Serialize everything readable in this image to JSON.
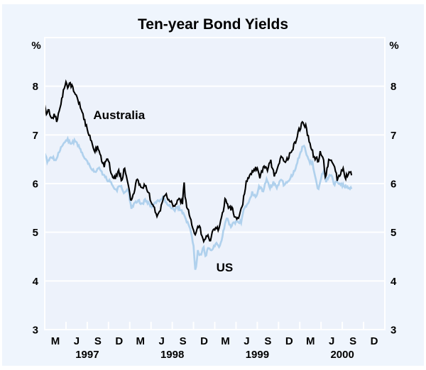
{
  "page": {
    "background": "#eff5fd",
    "plot_background": "#edf2fb",
    "grid_color": "#ffffff"
  },
  "chart_data": {
    "type": "line",
    "title": "Ten-year Bond Yields",
    "y_axis": {
      "unit_left": "%",
      "unit_right": "%",
      "min": 3,
      "max": 9,
      "tick_labels": [
        3,
        4,
        5,
        6,
        7,
        8
      ],
      "gridlines_at": [
        4,
        5,
        6,
        7,
        8
      ],
      "grid_on": true
    },
    "x_axis": {
      "month_labels": [
        "M",
        "J",
        "S",
        "D"
      ],
      "years": [
        "1997",
        "1998",
        "1999",
        "2000"
      ],
      "months_total": 48,
      "tick_every_months": 3
    },
    "series": [
      {
        "name": "US",
        "color": "#b0d1ed",
        "line_width": 2.7,
        "points": [
          [
            0,
            6.62
          ],
          [
            0.4,
            6.45
          ],
          [
            1.0,
            6.56
          ],
          [
            1.5,
            6.48
          ],
          [
            2.2,
            6.7
          ],
          [
            2.7,
            6.82
          ],
          [
            3.2,
            6.92
          ],
          [
            3.7,
            6.8
          ],
          [
            4.2,
            6.88
          ],
          [
            4.7,
            6.78
          ],
          [
            5.2,
            6.65
          ],
          [
            5.7,
            6.52
          ],
          [
            6.2,
            6.42
          ],
          [
            6.7,
            6.3
          ],
          [
            7.2,
            6.24
          ],
          [
            7.7,
            6.32
          ],
          [
            8.2,
            6.18
          ],
          [
            8.7,
            6.1
          ],
          [
            9.2,
            6.04
          ],
          [
            9.7,
            5.94
          ],
          [
            10.2,
            5.88
          ],
          [
            10.7,
            5.96
          ],
          [
            11.2,
            5.78
          ],
          [
            11.7,
            5.92
          ],
          [
            12.2,
            5.5
          ],
          [
            12.7,
            5.58
          ],
          [
            13.2,
            5.66
          ],
          [
            13.7,
            5.58
          ],
          [
            14.2,
            5.66
          ],
          [
            14.7,
            5.58
          ],
          [
            15.2,
            5.54
          ],
          [
            15.7,
            5.62
          ],
          [
            16.2,
            5.66
          ],
          [
            16.7,
            5.72
          ],
          [
            17.2,
            5.6
          ],
          [
            17.7,
            5.54
          ],
          [
            18.2,
            5.44
          ],
          [
            18.7,
            5.52
          ],
          [
            19.2,
            5.46
          ],
          [
            19.7,
            5.34
          ],
          [
            20.2,
            5.18
          ],
          [
            20.7,
            4.98
          ],
          [
            21.0,
            4.72
          ],
          [
            21.25,
            4.18
          ],
          [
            21.6,
            4.62
          ],
          [
            22.0,
            4.5
          ],
          [
            22.4,
            4.7
          ],
          [
            22.7,
            4.48
          ],
          [
            23.1,
            4.72
          ],
          [
            23.5,
            4.62
          ],
          [
            23.9,
            4.7
          ],
          [
            24.3,
            4.8
          ],
          [
            24.7,
            4.68
          ],
          [
            25.2,
            5.02
          ],
          [
            25.7,
            5.3
          ],
          [
            26.2,
            5.12
          ],
          [
            26.7,
            5.18
          ],
          [
            27.2,
            5.24
          ],
          [
            27.7,
            5.2
          ],
          [
            28.2,
            5.52
          ],
          [
            28.7,
            5.6
          ],
          [
            29.3,
            5.82
          ],
          [
            29.8,
            5.72
          ],
          [
            30.3,
            5.94
          ],
          [
            30.8,
            5.85
          ],
          [
            31.3,
            6.08
          ],
          [
            31.8,
            5.92
          ],
          [
            32.3,
            6.02
          ],
          [
            32.8,
            5.9
          ],
          [
            33.3,
            6.12
          ],
          [
            33.8,
            5.96
          ],
          [
            34.3,
            6.05
          ],
          [
            34.8,
            6.15
          ],
          [
            35.3,
            6.28
          ],
          [
            35.8,
            6.52
          ],
          [
            36.3,
            6.72
          ],
          [
            36.6,
            6.77
          ],
          [
            37.0,
            6.6
          ],
          [
            37.4,
            6.42
          ],
          [
            37.8,
            6.44
          ],
          [
            38.2,
            6.1
          ],
          [
            38.6,
            5.85
          ],
          [
            39.0,
            6.1
          ],
          [
            39.3,
            6.26
          ],
          [
            39.7,
            6.05
          ],
          [
            40.1,
            6.15
          ],
          [
            40.4,
            6.2
          ],
          [
            40.8,
            5.98
          ],
          [
            41.2,
            6.04
          ],
          [
            41.6,
            6.0
          ],
          [
            42.0,
            5.97
          ],
          [
            42.4,
            5.94
          ],
          [
            42.8,
            5.91
          ],
          [
            43.3,
            5.89
          ]
        ]
      },
      {
        "name": "Australia",
        "color": "#000000",
        "line_width": 2.1,
        "points": [
          [
            0,
            7.62
          ],
          [
            0.2,
            7.42
          ],
          [
            0.5,
            7.56
          ],
          [
            0.9,
            7.34
          ],
          [
            1.4,
            7.4
          ],
          [
            1.7,
            7.28
          ],
          [
            2.2,
            7.6
          ],
          [
            2.6,
            7.85
          ],
          [
            3.0,
            8.14
          ],
          [
            3.3,
            7.96
          ],
          [
            3.6,
            8.05
          ],
          [
            4.1,
            7.92
          ],
          [
            4.6,
            7.77
          ],
          [
            5.0,
            7.58
          ],
          [
            5.5,
            7.36
          ],
          [
            6.1,
            7.05
          ],
          [
            6.6,
            6.9
          ],
          [
            7.1,
            6.65
          ],
          [
            7.5,
            6.78
          ],
          [
            8.0,
            6.5
          ],
          [
            8.4,
            6.38
          ],
          [
            8.9,
            6.52
          ],
          [
            9.4,
            6.22
          ],
          [
            9.9,
            6.1
          ],
          [
            10.4,
            6.28
          ],
          [
            10.9,
            6.05
          ],
          [
            11.2,
            6.33
          ],
          [
            11.7,
            6.08
          ],
          [
            12.2,
            5.6
          ],
          [
            12.7,
            5.9
          ],
          [
            13.1,
            6.1
          ],
          [
            13.6,
            5.88
          ],
          [
            14.1,
            5.98
          ],
          [
            14.6,
            5.82
          ],
          [
            15.2,
            5.58
          ],
          [
            15.9,
            5.34
          ],
          [
            16.5,
            5.55
          ],
          [
            17.0,
            5.82
          ],
          [
            17.4,
            5.7
          ],
          [
            17.9,
            5.62
          ],
          [
            18.4,
            5.52
          ],
          [
            18.9,
            5.66
          ],
          [
            19.5,
            5.62
          ],
          [
            19.65,
            6.1
          ],
          [
            19.8,
            5.7
          ],
          [
            20.0,
            5.55
          ],
          [
            20.4,
            5.38
          ],
          [
            20.9,
            5.12
          ],
          [
            21.3,
            4.92
          ],
          [
            21.8,
            5.18
          ],
          [
            22.2,
            4.88
          ],
          [
            22.6,
            4.84
          ],
          [
            23.0,
            5.0
          ],
          [
            23.4,
            4.82
          ],
          [
            23.8,
            5.05
          ],
          [
            24.2,
            5.12
          ],
          [
            24.6,
            5.05
          ],
          [
            25.1,
            5.4
          ],
          [
            25.5,
            5.7
          ],
          [
            25.9,
            5.48
          ],
          [
            26.4,
            5.5
          ],
          [
            26.9,
            5.3
          ],
          [
            27.4,
            5.28
          ],
          [
            27.9,
            5.55
          ],
          [
            28.4,
            6.0
          ],
          [
            28.9,
            6.18
          ],
          [
            29.4,
            6.28
          ],
          [
            29.9,
            6.32
          ],
          [
            30.4,
            6.12
          ],
          [
            30.9,
            6.35
          ],
          [
            31.4,
            6.28
          ],
          [
            31.9,
            6.45
          ],
          [
            32.4,
            6.15
          ],
          [
            32.9,
            6.3
          ],
          [
            33.4,
            6.6
          ],
          [
            33.9,
            6.45
          ],
          [
            34.4,
            6.55
          ],
          [
            34.9,
            6.68
          ],
          [
            35.4,
            6.88
          ],
          [
            35.9,
            7.1
          ],
          [
            36.5,
            7.27
          ],
          [
            36.9,
            7.15
          ],
          [
            37.3,
            6.9
          ],
          [
            37.7,
            6.72
          ],
          [
            38.0,
            6.5
          ],
          [
            38.3,
            6.56
          ],
          [
            38.6,
            6.42
          ],
          [
            38.9,
            6.66
          ],
          [
            39.3,
            6.55
          ],
          [
            39.6,
            6.12
          ],
          [
            40.0,
            6.42
          ],
          [
            40.3,
            6.52
          ],
          [
            40.7,
            6.4
          ],
          [
            41.0,
            6.3
          ],
          [
            41.3,
            6.08
          ],
          [
            41.7,
            6.2
          ],
          [
            42.1,
            6.28
          ],
          [
            42.5,
            6.12
          ],
          [
            42.9,
            6.25
          ],
          [
            43.3,
            6.17
          ]
        ]
      }
    ],
    "annotations": [
      {
        "text": "Australia",
        "month": 10.5,
        "value": 7.41
      },
      {
        "text": "US",
        "month": 25.4,
        "value": 4.28
      }
    ]
  }
}
